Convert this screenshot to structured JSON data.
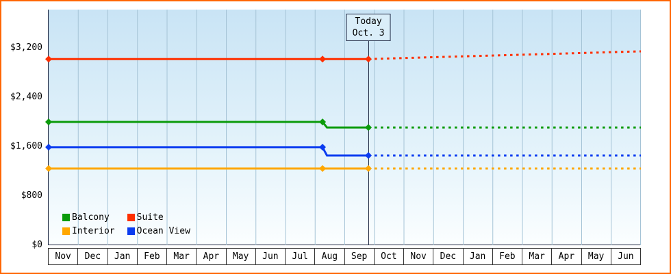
{
  "frame": {
    "border_color": "#ff6600",
    "axis_color": "#1c2640",
    "gridline_color": "#a5c3d6"
  },
  "chart_data": {
    "type": "line",
    "y_axis": {
      "ticks": [
        {
          "label": "$0",
          "value": 0
        },
        {
          "label": "$800",
          "value": 800
        },
        {
          "label": "$1,600",
          "value": 1600
        },
        {
          "label": "$2,400",
          "value": 2400
        },
        {
          "label": "$3,200",
          "value": 3200
        }
      ],
      "ylim": [
        0,
        3820
      ]
    },
    "x_axis": {
      "months": [
        "Nov",
        "Dec",
        "Jan",
        "Feb",
        "Mar",
        "Apr",
        "May",
        "Jun",
        "Jul",
        "Aug",
        "Sep",
        "Oct",
        "Nov",
        "Dec",
        "Jan",
        "Feb",
        "Mar",
        "Apr",
        "May",
        "Jun"
      ]
    },
    "today": {
      "label_line1": "Today",
      "label_line2": "Oct. 3",
      "x_month_units": 10.8
    },
    "series": [
      {
        "name": "Suite",
        "color": "#ff2f00",
        "solid": [
          [
            0,
            3020
          ],
          [
            9.25,
            3020
          ],
          [
            10.8,
            3020
          ]
        ],
        "dashed": [
          [
            10.8,
            3020
          ],
          [
            20,
            3145
          ]
        ],
        "markers": [
          [
            0,
            3020
          ],
          [
            9.25,
            3020
          ],
          [
            10.8,
            3020
          ]
        ]
      },
      {
        "name": "Balcony",
        "color": "#0b9b0b",
        "solid": [
          [
            0,
            2000
          ],
          [
            9.25,
            2000
          ],
          [
            9.4,
            1910
          ],
          [
            10.8,
            1910
          ]
        ],
        "dashed": [
          [
            10.8,
            1910
          ],
          [
            20,
            1910
          ]
        ],
        "markers": [
          [
            0,
            2000
          ],
          [
            9.25,
            2000
          ],
          [
            10.8,
            1910
          ]
        ]
      },
      {
        "name": "Ocean View",
        "color": "#0b3cf0",
        "solid": [
          [
            0,
            1590
          ],
          [
            9.25,
            1590
          ],
          [
            9.4,
            1455
          ],
          [
            10.8,
            1455
          ]
        ],
        "dashed": [
          [
            10.8,
            1455
          ],
          [
            20,
            1455
          ]
        ],
        "markers": [
          [
            0,
            1590
          ],
          [
            9.25,
            1590
          ],
          [
            10.8,
            1455
          ]
        ]
      },
      {
        "name": "Interior",
        "color": "#ffa700",
        "solid": [
          [
            0,
            1245
          ],
          [
            9.25,
            1245
          ],
          [
            10.8,
            1245
          ]
        ],
        "dashed": [
          [
            10.8,
            1245
          ],
          [
            20,
            1245
          ]
        ],
        "markers": [
          [
            0,
            1245
          ],
          [
            9.25,
            1245
          ],
          [
            10.8,
            1245
          ]
        ]
      }
    ],
    "legend": [
      {
        "label": "Balcony",
        "color": "#0b9b0b"
      },
      {
        "label": "Suite",
        "color": "#ff2f00"
      },
      {
        "label": "Interior",
        "color": "#ffa700"
      },
      {
        "label": "Ocean View",
        "color": "#0b3cf0"
      }
    ]
  }
}
